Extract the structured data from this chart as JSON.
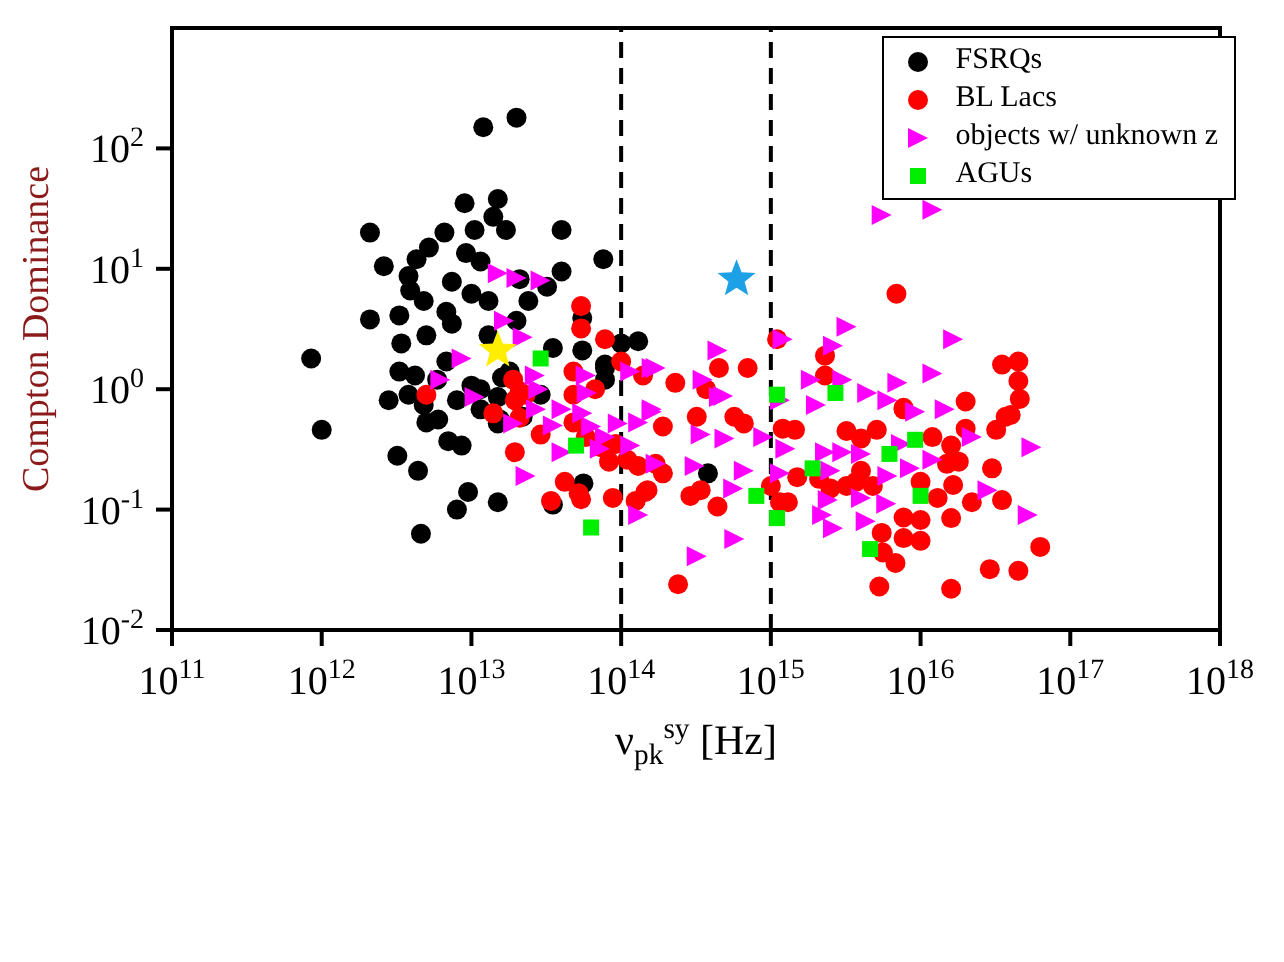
{
  "chart_data": {
    "type": "scatter",
    "xlabel": "ν$_{pk}$$^{sy}$ [Hz]",
    "ylabel": "Compton Dominance",
    "log": "xy",
    "legend": "top right",
    "xlim": [
      100000000000.0,
      1e+18
    ],
    "xticks": [
      {
        "value": 100000000000.0,
        "label": "10$^{11}$"
      },
      {
        "value": 1000000000000.0,
        "label": "10$^{12}$"
      },
      {
        "value": 10000000000000.0,
        "label": "10$^{13}$"
      },
      {
        "value": 100000000000000.0,
        "label": "10$^{14}$"
      },
      {
        "value": 1000000000000000.0,
        "label": "10$^{15}$"
      },
      {
        "value": 1e+16,
        "label": "10$^{16}$"
      },
      {
        "value": 1e+17,
        "label": "10$^{17}$"
      },
      {
        "value": 1e+18,
        "label": "10$^{18}$"
      }
    ],
    "ylim": [
      0.01,
      1000
    ],
    "yticks": [
      {
        "value": 0.01,
        "label": "10$^{-2}$"
      },
      {
        "value": 0.1,
        "label": "10$^{-1}$"
      },
      {
        "value": 1,
        "label": "10$^{0}$"
      },
      {
        "value": 10,
        "label": "10$^{1}$"
      },
      {
        "value": 100,
        "label": "10$^{2}$"
      }
    ],
    "ref_lines": [
      {
        "axis": "x",
        "value": 100000000000000.0,
        "color": "#000000",
        "line_style": "dashed"
      },
      {
        "axis": "x",
        "value": 1000000000000000.0,
        "color": "#000000",
        "line_style": "dashed"
      }
    ],
    "series": [
      {
        "name": "FSRQs",
        "color": "#000000",
        "marker": "circle",
        "x": [
          850000000000.0,
          1000000000000.0,
          12000000000000.0,
          20000000000000.0,
          2100000000000.0,
          2600000000000.0,
          2100000000000.0,
          9000000000000.0,
          15000000000000.0,
          40000000000000.0,
          76000000000000.0,
          40000000000000.0,
          14000000000000.0,
          17000000000000.0,
          10500000000000.0,
          6600000000000.0,
          5200000000000.0,
          4300000000000.0,
          3800000000000.0,
          9200000000000.0,
          3900000000000.0,
          4800000000000.0,
          3300000000000.0,
          3400000000000.0,
          5000000000000.0,
          6800000000000.0,
          10000000000000.0,
          24000000000000.0,
          32000000000000.0,
          20000000000000.0,
          35000000000000.0,
          55000000000000.0,
          55000000000000.0,
          78000000000000.0,
          100000000000000.0,
          130000000000000.0,
          11500000000000.0,
          7400000000000.0,
          13000000000000.0,
          6800000000000.0,
          3300000000000.0,
          2800000000000.0,
          3800000000000.0,
          5000000000000.0,
          6000000000000.0,
          7000000000000.0,
          8600000000000.0,
          3200000000000.0,
          4400000000000.0,
          9500000000000.0,
          8000000000000.0,
          15000000000000.0,
          4600000000000.0,
          35000000000000.0,
          56000000000000.0,
          15000000000000.0,
          22000000000000.0,
          16000000000000.0,
          10000000000000.0,
          29000000000000.0,
          78000000000000.0,
          78000000000000.0,
          5900000000000.0,
          8000000000000.0,
          11500000000000.0,
          15000000000000.0,
          380000000000000.0,
          4800000000000.0,
          11500000000000.0,
          18000000000000.0,
          7400000000000.0,
          13000000000000.0,
          4200000000000.0,
          21000000000000.0,
          15500000000000.0
        ],
        "values": [
          1.8,
          0.46,
          150,
          180,
          20,
          10.5,
          3.8,
          35,
          38,
          21,
          12,
          9.5,
          27,
          21,
          21,
          20,
          15,
          12,
          8.7,
          13.5,
          6.6,
          5.4,
          4.1,
          2.4,
          2.8,
          4.4,
          6.2,
          5.4,
          7.1,
          3.7,
          2.2,
          3.9,
          2.1,
          1.6,
          2.4,
          2.5,
          11.5,
          7.8,
          2.8,
          1.7,
          1.4,
          0.81,
          0.9,
          0.53,
          0.56,
          0.37,
          0.34,
          0.28,
          0.21,
          0.14,
          0.1,
          0.115,
          0.063,
          0.11,
          0.165,
          0.52,
          0.59,
          1.25,
          1.07,
          0.9,
          1.5,
          1.2,
          1.2,
          0.81,
          0.68,
          0.86,
          0.2,
          0.74,
          1.0,
          1.4,
          3.5,
          5.4,
          1.3,
          8.2,
          0.56
        ]
      },
      {
        "name": "BL Lacs",
        "color": "#ff0000",
        "marker": "circle",
        "x": [
          2e+16,
          4.6e+16,
          3.7e+16,
          4e+16,
          3.2e+16,
          2e+16,
          1.2e+16,
          1.6e+16,
          1.8e+16,
          1.5e+16,
          3e+16,
          1.65e+16,
          3.5e+16,
          2.2e+16,
          1.3e+16,
          1e+16,
          1.6e+16,
          1e+16,
          7700000000000000.0,
          5500000000000000.0,
          7700000000000000.0,
          1e+16,
          5600000000000000.0,
          6800000000000000.0,
          5300000000000000.0,
          1.6e+16,
          2.9e+16,
          4.5e+16,
          6.3e+16,
          240000000000000.0,
          440000000000000.0,
          290000000000000.0,
          340000000000000.0,
          1300000000000000.0,
          1150000000000000.0,
          2500000000000000.0,
          3200000000000000.0,
          3700000000000000.0,
          4000000000000000.0,
          4800000000000000.0,
          1500000000000000.0,
          1000000000000000.0,
          190000000000000.0,
          150000000000000.0,
          320000000000000.0,
          570000000000000.0,
          660000000000000.0,
          1200000000000000.0,
          1450000000000000.0,
          7700000000000000.0,
          5100000000000000.0,
          4000000000000000.0,
          3200000000000000.0,
          2100000000000000.0,
          190000000000000.0,
          370000000000000.0,
          6900000000000000.0,
          2300000000000000.0,
          3.5e+16,
          4.5e+16,
          4.5e+16,
          230000000000000.0,
          7700000000000000.0,
          78000000000000.0,
          100000000000000.0,
          48000000000000.0,
          48000000000000.0,
          67000000000000.0,
          19000000000000.0,
          21000000000000.0,
          19500000000000.0,
          5000000000000.0,
          14000000000000.0,
          21000000000000.0,
          29000000000000.0,
          48000000000000.0,
          58000000000000.0,
          73000000000000.0,
          92000000000000.0,
          19500000000000.0,
          83000000000000.0,
          110000000000000.0,
          130000000000000.0,
          170000000000000.0,
          145000000000000.0,
          88000000000000.0,
          42000000000000.0,
          52000000000000.0,
          54000000000000.0,
          34000000000000.0,
          125000000000000.0,
          54000000000000.0,
          54000000000000.0,
          23000000000000.0,
          700000000000000.0,
          1100000000000000.0,
          140000000000000.0,
          450000000000000.0,
          2300000000000000.0
        ],
        "values": [
          0.79,
          0.83,
          0.59,
          0.61,
          0.46,
          0.47,
          0.4,
          0.34,
          0.25,
          0.24,
          0.22,
          0.16,
          0.12,
          0.115,
          0.125,
          0.17,
          0.085,
          0.082,
          0.086,
          0.064,
          0.058,
          0.055,
          0.044,
          0.036,
          0.023,
          0.022,
          0.032,
          0.031,
          0.049,
          0.024,
          0.106,
          0.13,
          0.145,
          0.115,
          0.115,
          0.15,
          0.157,
          0.17,
          0.21,
          0.157,
          0.186,
          0.157,
          0.2,
          0.145,
          0.59,
          0.59,
          0.52,
          0.47,
          0.46,
          0.68,
          0.46,
          0.39,
          0.45,
          0.18,
          0.49,
          1.0,
          6.2,
          1.9,
          1.6,
          1.7,
          1.17,
          1.13,
          0.7,
          2.6,
          1.7,
          1.4,
          0.9,
          1.0,
          1.2,
          0.96,
          0.81,
          0.9,
          0.63,
          0.58,
          0.42,
          0.53,
          0.4,
          0.33,
          0.35,
          0.3,
          0.25,
          0.26,
          0.23,
          0.24,
          0.14,
          0.125,
          0.17,
          0.137,
          0.122,
          0.118,
          0.118,
          4.9,
          3.2,
          0.9,
          1.5,
          2.6,
          1.3,
          1.5,
          1.3
        ]
      },
      {
        "name": "objects w/ unknown z",
        "color": "#ff00ff",
        "marker": "triangle",
        "x": [
          5500000000000000.0,
          1.2e+16,
          3200000000000000.0,
          1200000000000000.0,
          1.65e+16,
          2600000000000000.0,
          440000000000000.0,
          170000000000000.0,
          1850000000000000.0,
          3000000000000000.0,
          1.2e+16,
          7000000000000000.0,
          350000000000000.0,
          480000000000000.0,
          4400000000000000.0,
          6000000000000000.0,
          2000000000000000.0,
          1.45e+16,
          9200000000000000.0,
          1150000000000000.0,
          450000000000000.0,
          160000000000000.0,
          340000000000000.0,
          490000000000000.0,
          890000000000000.0,
          1250000000000000.0,
          2300000000000000.0,
          3000000000000000.0,
          4000000000000000.0,
          7400000000000000.0,
          5.5e+16,
          2.2e+16,
          1.2e+16,
          8500000000000000.0,
          6000000000000000.0,
          2500000000000000.0,
          1150000000000000.0,
          660000000000000.0,
          310000000000000.0,
          170000000000000.0,
          560000000000000.0,
          2400000000000000.0,
          4000000000000000.0,
          5900000000000000.0,
          2.8e+16,
          2200000000000000.0,
          4300000000000000.0,
          2600000000000000.0,
          5.2e+16,
          570000000000000.0,
          320000000000000.0,
          22000000000000.0,
          8600000000000.0,
          6200000000000.0,
          10500000000000.0,
          26500000000000.0,
          28000000000000.0,
          58000000000000.0,
          59000000000000.0,
          115000000000000.0,
          160000000000000.0,
          27000000000000.0,
          40000000000000.0,
          55000000000000.0,
          35000000000000.0,
          19000000000000.0,
          40000000000000.0,
          63000000000000.0,
          95000000000000.0,
          130000000000000.0,
          160000000000000.0,
          78000000000000.0,
          115000000000000.0,
          23000000000000.0,
          130000000000000.0,
          72000000000000.0,
          15000000000000.0,
          20000000000000.0,
          29000000000000.0,
          16500000000000.0
        ],
        "values": [
          28,
          31,
          3.3,
          2.6,
          2.6,
          2.3,
          2.1,
          1.5,
          1.2,
          1.2,
          1.35,
          1.13,
          1.2,
          0.88,
          0.93,
          0.81,
          0.74,
          0.68,
          0.65,
          0.81,
          0.86,
          0.68,
          0.42,
          0.39,
          0.4,
          0.32,
          0.3,
          0.3,
          0.29,
          0.35,
          0.33,
          0.4,
          0.26,
          0.22,
          0.19,
          0.21,
          0.2,
          0.21,
          0.23,
          0.24,
          0.15,
          0.12,
          0.125,
          0.112,
          0.145,
          0.09,
          0.08,
          0.07,
          0.09,
          0.057,
          0.041,
          2.7,
          1.8,
          1.2,
          0.86,
          1.3,
          1.0,
          1.3,
          0.93,
          1.4,
          1.5,
          0.68,
          0.68,
          0.63,
          0.5,
          0.52,
          0.3,
          0.49,
          0.52,
          0.53,
          0.65,
          0.4,
          0.34,
          0.19,
          0.09,
          0.32,
          9.2,
          8.4,
          8,
          3.7
        ]
      },
      {
        "name": "AGUs",
        "color": "#00ee00",
        "marker": "square",
        "x": [
          29000000000000.0,
          50000000000000.0,
          63000000000000.0,
          1100000000000000.0,
          2700000000000000.0,
          9200000000000000.0,
          6200000000000000.0,
          1900000000000000.0,
          800000000000000.0,
          1e+16,
          1100000000000000.0,
          4600000000000000.0
        ],
        "values": [
          1.8,
          0.34,
          0.071,
          0.9,
          0.93,
          0.38,
          0.29,
          0.22,
          0.13,
          0.13,
          0.085,
          0.047
        ]
      },
      {
        "color": "#ffee00",
        "marker": "star",
        "x": [
          15000000000000.0
        ],
        "values": [
          2.1
        ]
      },
      {
        "color": "#1ea0e6",
        "marker": "star",
        "x": [
          590000000000000.0
        ],
        "values": [
          8.2
        ]
      }
    ]
  }
}
